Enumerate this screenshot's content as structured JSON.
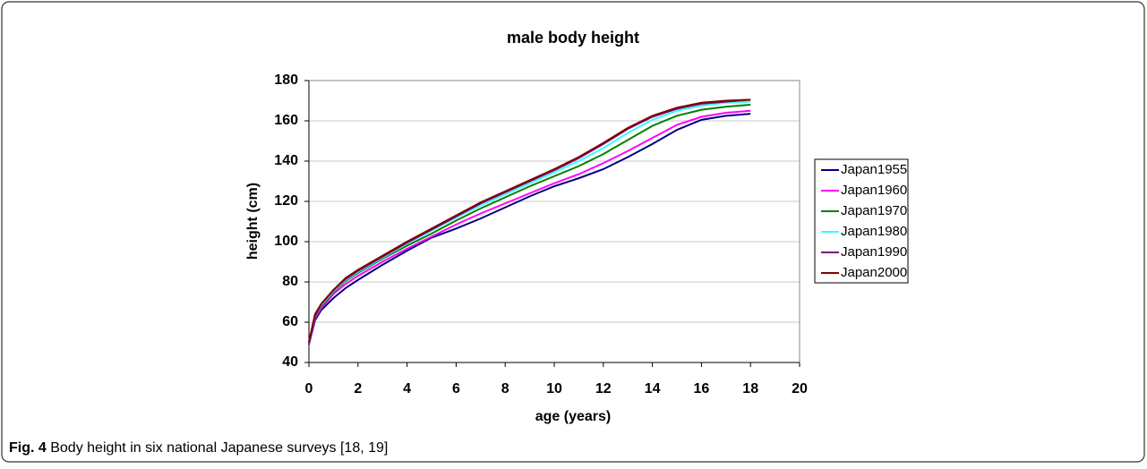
{
  "chart_data": {
    "type": "line",
    "title": "male body height",
    "x_label": "age (years)",
    "y_label": "height (cm)",
    "x": [
      0,
      0.25,
      0.5,
      1,
      1.5,
      2,
      3,
      4,
      5,
      6,
      7,
      8,
      9,
      10,
      11,
      12,
      13,
      14,
      15,
      16,
      17,
      18
    ],
    "series": [
      {
        "name": "Japan1955",
        "color": "#000080",
        "values": [
          49,
          61,
          66,
          72,
          77,
          81,
          88.5,
          95.5,
          102,
          106.5,
          111.5,
          117,
          122.5,
          127.5,
          131.5,
          136,
          142,
          148.5,
          155.5,
          160.5,
          162.5,
          163.5
        ]
      },
      {
        "name": "Japan1960",
        "color": "#ff00ff",
        "values": [
          49.5,
          62,
          67,
          74,
          79,
          83,
          90,
          96.5,
          102.5,
          108.5,
          114,
          119,
          124,
          129,
          133.5,
          139,
          145,
          151.5,
          158,
          162,
          164,
          165
        ]
      },
      {
        "name": "Japan1970",
        "color": "#008000",
        "values": [
          50,
          63,
          68,
          75,
          80.5,
          84.5,
          91.5,
          98,
          104,
          110.5,
          116.5,
          122,
          127.5,
          132.5,
          137.5,
          143.5,
          150.5,
          157.5,
          162.5,
          165.5,
          167,
          168
        ]
      },
      {
        "name": "Japan1980",
        "color": "#33ffff",
        "values": [
          50,
          63.5,
          68.5,
          75.5,
          81,
          85,
          92,
          99,
          105.5,
          112,
          118,
          123.5,
          129,
          134.5,
          140,
          146.5,
          154,
          160.5,
          165,
          167.5,
          169,
          169.5
        ]
      },
      {
        "name": "Japan1990",
        "color": "#800080",
        "values": [
          50,
          63.5,
          69,
          76,
          81.5,
          85.5,
          92.5,
          99.5,
          106,
          112.5,
          119,
          124.5,
          130,
          135.5,
          141.5,
          148.5,
          156,
          162,
          166,
          168.5,
          169.5,
          170.5
        ]
      },
      {
        "name": "Japan2000",
        "color": "#800000",
        "values": [
          50,
          64,
          69,
          76,
          82,
          86,
          93,
          100,
          106.5,
          113,
          119.5,
          125,
          130.5,
          136,
          142,
          149,
          156.5,
          162.5,
          166.5,
          169,
          170,
          170.5
        ]
      }
    ],
    "xlim": [
      0,
      20
    ],
    "xticks": [
      0,
      2,
      4,
      6,
      8,
      10,
      12,
      14,
      16,
      18,
      20
    ],
    "ylim": [
      40,
      180
    ],
    "yticks": [
      40,
      60,
      80,
      100,
      120,
      140,
      160,
      180
    ],
    "grid": true,
    "legend": "right"
  },
  "caption": {
    "label": "Fig. 4",
    "text": "Body height in six national Japanese surveys [18, 19]"
  }
}
